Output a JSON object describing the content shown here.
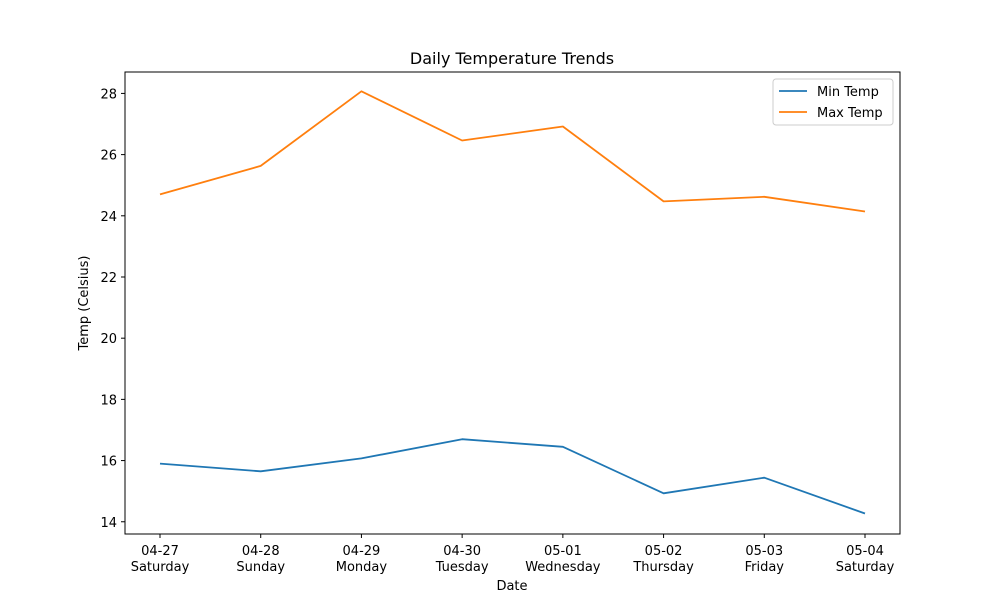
{
  "chart_data": {
    "type": "line",
    "title": "Daily Temperature Trends",
    "xlabel": "Date",
    "ylabel": "Temp (Celsius)",
    "categories": [
      {
        "date": "04-27",
        "day": "Saturday"
      },
      {
        "date": "04-28",
        "day": "Sunday"
      },
      {
        "date": "04-29",
        "day": "Monday"
      },
      {
        "date": "04-30",
        "day": "Tuesday"
      },
      {
        "date": "05-01",
        "day": "Wednesday"
      },
      {
        "date": "05-02",
        "day": "Thursday"
      },
      {
        "date": "05-03",
        "day": "Friday"
      },
      {
        "date": "05-04",
        "day": "Saturday"
      }
    ],
    "ylim": [
      13.6,
      28.7
    ],
    "yticks": [
      "14",
      "16",
      "18",
      "20",
      "22",
      "24",
      "26",
      "28"
    ],
    "grid": false,
    "legend_position": "top-right",
    "series": [
      {
        "name": "Min Temp",
        "color": "#1f77b4",
        "values": [
          15.9,
          15.65,
          16.07,
          16.7,
          16.45,
          14.93,
          15.44,
          14.27
        ]
      },
      {
        "name": "Max Temp",
        "color": "#ff7f0e",
        "values": [
          24.7,
          25.63,
          28.07,
          26.46,
          26.92,
          24.47,
          24.62,
          24.14
        ]
      }
    ]
  }
}
